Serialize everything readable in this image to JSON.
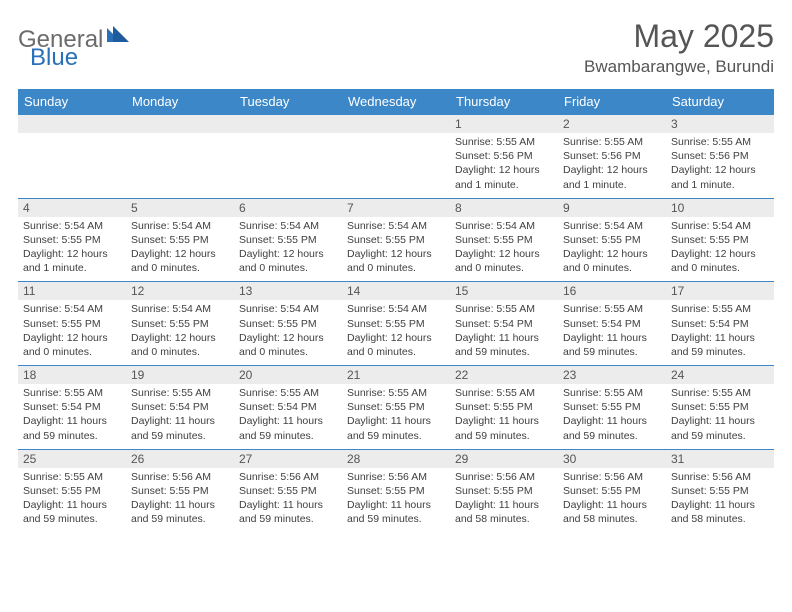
{
  "logo": {
    "general": "General",
    "blue": "Blue"
  },
  "title": "May 2025",
  "subtitle": "Bwambarangwe, Burundi",
  "colors": {
    "header_bg": "#3b87c8",
    "row_border": "#3b87c8",
    "daynum_bg": "#ececec",
    "page_bg": "#ffffff",
    "title_color": "#555555",
    "logo_gray": "#6b6b6b",
    "logo_blue": "#2a70b8",
    "body_text": "#404040"
  },
  "weekdays": [
    "Sunday",
    "Monday",
    "Tuesday",
    "Wednesday",
    "Thursday",
    "Friday",
    "Saturday"
  ],
  "weeks": [
    [
      {
        "n": "",
        "sr": "",
        "ss": "",
        "dl": ""
      },
      {
        "n": "",
        "sr": "",
        "ss": "",
        "dl": ""
      },
      {
        "n": "",
        "sr": "",
        "ss": "",
        "dl": ""
      },
      {
        "n": "",
        "sr": "",
        "ss": "",
        "dl": ""
      },
      {
        "n": "1",
        "sr": "Sunrise: 5:55 AM",
        "ss": "Sunset: 5:56 PM",
        "dl": "Daylight: 12 hours and 1 minute."
      },
      {
        "n": "2",
        "sr": "Sunrise: 5:55 AM",
        "ss": "Sunset: 5:56 PM",
        "dl": "Daylight: 12 hours and 1 minute."
      },
      {
        "n": "3",
        "sr": "Sunrise: 5:55 AM",
        "ss": "Sunset: 5:56 PM",
        "dl": "Daylight: 12 hours and 1 minute."
      }
    ],
    [
      {
        "n": "4",
        "sr": "Sunrise: 5:54 AM",
        "ss": "Sunset: 5:55 PM",
        "dl": "Daylight: 12 hours and 1 minute."
      },
      {
        "n": "5",
        "sr": "Sunrise: 5:54 AM",
        "ss": "Sunset: 5:55 PM",
        "dl": "Daylight: 12 hours and 0 minutes."
      },
      {
        "n": "6",
        "sr": "Sunrise: 5:54 AM",
        "ss": "Sunset: 5:55 PM",
        "dl": "Daylight: 12 hours and 0 minutes."
      },
      {
        "n": "7",
        "sr": "Sunrise: 5:54 AM",
        "ss": "Sunset: 5:55 PM",
        "dl": "Daylight: 12 hours and 0 minutes."
      },
      {
        "n": "8",
        "sr": "Sunrise: 5:54 AM",
        "ss": "Sunset: 5:55 PM",
        "dl": "Daylight: 12 hours and 0 minutes."
      },
      {
        "n": "9",
        "sr": "Sunrise: 5:54 AM",
        "ss": "Sunset: 5:55 PM",
        "dl": "Daylight: 12 hours and 0 minutes."
      },
      {
        "n": "10",
        "sr": "Sunrise: 5:54 AM",
        "ss": "Sunset: 5:55 PM",
        "dl": "Daylight: 12 hours and 0 minutes."
      }
    ],
    [
      {
        "n": "11",
        "sr": "Sunrise: 5:54 AM",
        "ss": "Sunset: 5:55 PM",
        "dl": "Daylight: 12 hours and 0 minutes."
      },
      {
        "n": "12",
        "sr": "Sunrise: 5:54 AM",
        "ss": "Sunset: 5:55 PM",
        "dl": "Daylight: 12 hours and 0 minutes."
      },
      {
        "n": "13",
        "sr": "Sunrise: 5:54 AM",
        "ss": "Sunset: 5:55 PM",
        "dl": "Daylight: 12 hours and 0 minutes."
      },
      {
        "n": "14",
        "sr": "Sunrise: 5:54 AM",
        "ss": "Sunset: 5:55 PM",
        "dl": "Daylight: 12 hours and 0 minutes."
      },
      {
        "n": "15",
        "sr": "Sunrise: 5:55 AM",
        "ss": "Sunset: 5:54 PM",
        "dl": "Daylight: 11 hours and 59 minutes."
      },
      {
        "n": "16",
        "sr": "Sunrise: 5:55 AM",
        "ss": "Sunset: 5:54 PM",
        "dl": "Daylight: 11 hours and 59 minutes."
      },
      {
        "n": "17",
        "sr": "Sunrise: 5:55 AM",
        "ss": "Sunset: 5:54 PM",
        "dl": "Daylight: 11 hours and 59 minutes."
      }
    ],
    [
      {
        "n": "18",
        "sr": "Sunrise: 5:55 AM",
        "ss": "Sunset: 5:54 PM",
        "dl": "Daylight: 11 hours and 59 minutes."
      },
      {
        "n": "19",
        "sr": "Sunrise: 5:55 AM",
        "ss": "Sunset: 5:54 PM",
        "dl": "Daylight: 11 hours and 59 minutes."
      },
      {
        "n": "20",
        "sr": "Sunrise: 5:55 AM",
        "ss": "Sunset: 5:54 PM",
        "dl": "Daylight: 11 hours and 59 minutes."
      },
      {
        "n": "21",
        "sr": "Sunrise: 5:55 AM",
        "ss": "Sunset: 5:55 PM",
        "dl": "Daylight: 11 hours and 59 minutes."
      },
      {
        "n": "22",
        "sr": "Sunrise: 5:55 AM",
        "ss": "Sunset: 5:55 PM",
        "dl": "Daylight: 11 hours and 59 minutes."
      },
      {
        "n": "23",
        "sr": "Sunrise: 5:55 AM",
        "ss": "Sunset: 5:55 PM",
        "dl": "Daylight: 11 hours and 59 minutes."
      },
      {
        "n": "24",
        "sr": "Sunrise: 5:55 AM",
        "ss": "Sunset: 5:55 PM",
        "dl": "Daylight: 11 hours and 59 minutes."
      }
    ],
    [
      {
        "n": "25",
        "sr": "Sunrise: 5:55 AM",
        "ss": "Sunset: 5:55 PM",
        "dl": "Daylight: 11 hours and 59 minutes."
      },
      {
        "n": "26",
        "sr": "Sunrise: 5:56 AM",
        "ss": "Sunset: 5:55 PM",
        "dl": "Daylight: 11 hours and 59 minutes."
      },
      {
        "n": "27",
        "sr": "Sunrise: 5:56 AM",
        "ss": "Sunset: 5:55 PM",
        "dl": "Daylight: 11 hours and 59 minutes."
      },
      {
        "n": "28",
        "sr": "Sunrise: 5:56 AM",
        "ss": "Sunset: 5:55 PM",
        "dl": "Daylight: 11 hours and 59 minutes."
      },
      {
        "n": "29",
        "sr": "Sunrise: 5:56 AM",
        "ss": "Sunset: 5:55 PM",
        "dl": "Daylight: 11 hours and 58 minutes."
      },
      {
        "n": "30",
        "sr": "Sunrise: 5:56 AM",
        "ss": "Sunset: 5:55 PM",
        "dl": "Daylight: 11 hours and 58 minutes."
      },
      {
        "n": "31",
        "sr": "Sunrise: 5:56 AM",
        "ss": "Sunset: 5:55 PM",
        "dl": "Daylight: 11 hours and 58 minutes."
      }
    ]
  ]
}
